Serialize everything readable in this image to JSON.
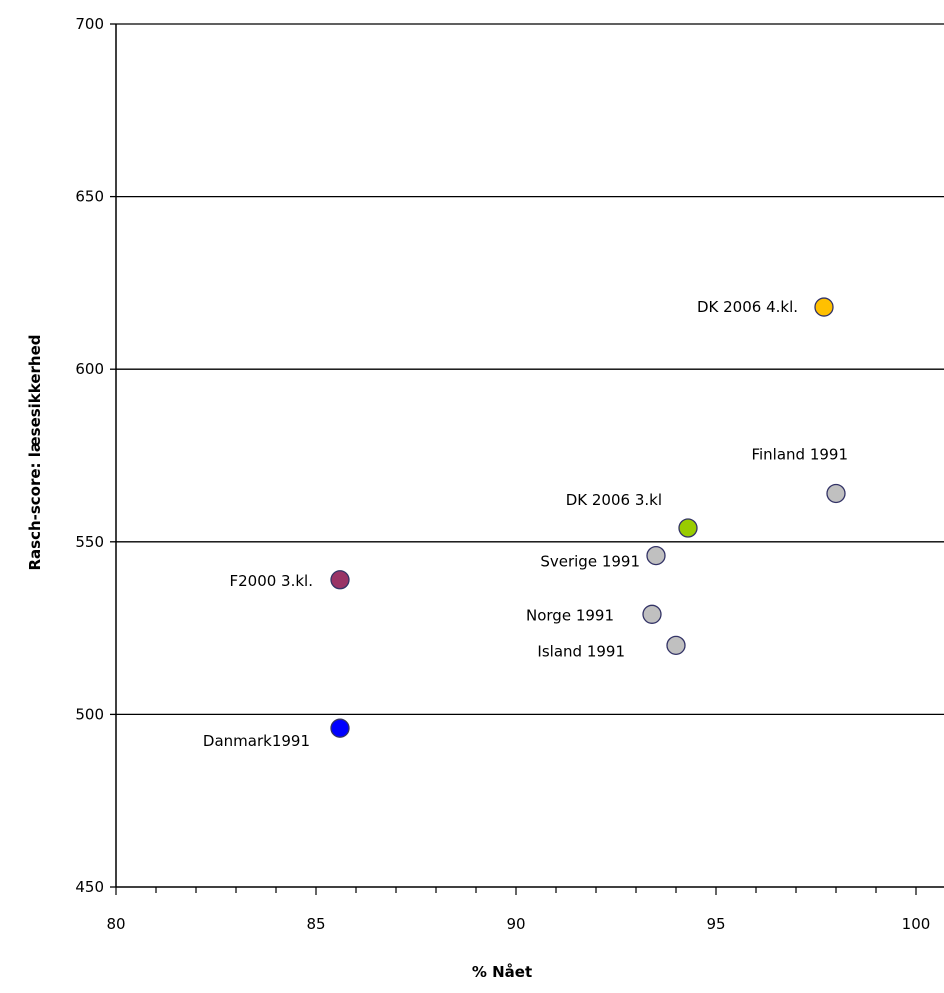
{
  "chart_data": {
    "type": "scatter",
    "xlabel": "% Nået",
    "ylabel": "Rasch-score: læsesikkerhed",
    "xlim": [
      80,
      100
    ],
    "ylim": [
      450,
      700
    ],
    "x_ticks": [
      "80",
      "85",
      "90",
      "95",
      "100"
    ],
    "y_ticks": [
      "700",
      "650",
      "600",
      "550",
      "500",
      "450"
    ],
    "grid": "horizontal",
    "points": [
      {
        "label": "DK 2006 4.kl.",
        "x": 97.7,
        "y": 618,
        "color": "#FFC000"
      },
      {
        "label": "Finland 1991",
        "x": 98.0,
        "y": 564,
        "color": "#C0C0C0"
      },
      {
        "label": "DK 2006 3.kl",
        "x": 94.3,
        "y": 554,
        "color": "#99CC00"
      },
      {
        "label": "Sverige 1991",
        "x": 93.5,
        "y": 546,
        "color": "#C0C0C0"
      },
      {
        "label": "F2000 3.kl.",
        "x": 85.6,
        "y": 539,
        "color": "#993366"
      },
      {
        "label": "Norge 1991",
        "x": 93.4,
        "y": 529,
        "color": "#C0C0C0"
      },
      {
        "label": "Island 1991",
        "x": 94.0,
        "y": 520,
        "color": "#C0C0C0"
      },
      {
        "label": "Danmark1991",
        "x": 85.6,
        "y": 496,
        "color": "#0000FF"
      }
    ]
  }
}
